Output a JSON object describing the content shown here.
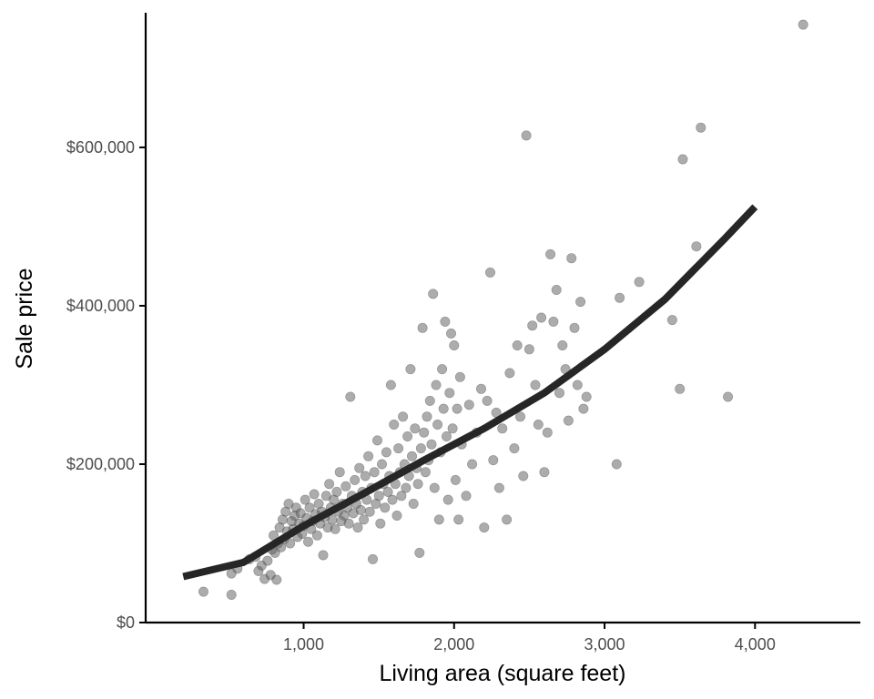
{
  "chart_data": {
    "type": "scatter",
    "title": "",
    "xlabel": "Living area (square feet)",
    "ylabel": "Sale price",
    "xlim": [
      -50,
      4700
    ],
    "ylim": [
      0,
      770000
    ],
    "xticks": [
      {
        "value": 1000,
        "label": "1,000"
      },
      {
        "value": 2000,
        "label": "2,000"
      },
      {
        "value": 3000,
        "label": "3,000"
      },
      {
        "value": 4000,
        "label": "4,000"
      }
    ],
    "yticks": [
      {
        "value": 0,
        "label": "$0"
      },
      {
        "value": 200000,
        "label": "$200,000"
      },
      {
        "value": 400000,
        "label": "$400,000"
      },
      {
        "value": 600000,
        "label": "$600,000"
      }
    ],
    "grid": false,
    "legend": "none",
    "point_color": "#595959",
    "line_color": "#262626",
    "series": [
      {
        "kind": "points",
        "points": [
          [
            334,
            39000
          ],
          [
            520,
            35000
          ],
          [
            520,
            62000
          ],
          [
            560,
            68000
          ],
          [
            640,
            80000
          ],
          [
            680,
            83000
          ],
          [
            700,
            65000
          ],
          [
            720,
            72000
          ],
          [
            740,
            55000
          ],
          [
            760,
            78000
          ],
          [
            780,
            60000
          ],
          [
            790,
            92000
          ],
          [
            800,
            110000
          ],
          [
            810,
            88000
          ],
          [
            820,
            54000
          ],
          [
            830,
            100000
          ],
          [
            840,
            120000
          ],
          [
            850,
            95000
          ],
          [
            860,
            130000
          ],
          [
            870,
            105000
          ],
          [
            880,
            140000
          ],
          [
            890,
            115000
          ],
          [
            900,
            150000
          ],
          [
            910,
            100000
          ],
          [
            920,
            128000
          ],
          [
            930,
            118000
          ],
          [
            940,
            135000
          ],
          [
            950,
            145000
          ],
          [
            960,
            108000
          ],
          [
            970,
            125000
          ],
          [
            980,
            138000
          ],
          [
            990,
            112000
          ],
          [
            1000,
            122000
          ],
          [
            1010,
            155000
          ],
          [
            1020,
            132000
          ],
          [
            1030,
            102000
          ],
          [
            1040,
            145000
          ],
          [
            1050,
            118000
          ],
          [
            1060,
            128000
          ],
          [
            1070,
            162000
          ],
          [
            1080,
            137000
          ],
          [
            1090,
            110000
          ],
          [
            1100,
            150000
          ],
          [
            1110,
            125000
          ],
          [
            1120,
            140000
          ],
          [
            1130,
            85000
          ],
          [
            1140,
            133000
          ],
          [
            1150,
            160000
          ],
          [
            1160,
            120000
          ],
          [
            1170,
            175000
          ],
          [
            1180,
            145000
          ],
          [
            1190,
            130000
          ],
          [
            1200,
            155000
          ],
          [
            1210,
            118000
          ],
          [
            1220,
            165000
          ],
          [
            1230,
            140000
          ],
          [
            1240,
            190000
          ],
          [
            1250,
            128000
          ],
          [
            1260,
            150000
          ],
          [
            1270,
            135000
          ],
          [
            1280,
            172000
          ],
          [
            1290,
            145000
          ],
          [
            1300,
            125000
          ],
          [
            1310,
            285000
          ],
          [
            1320,
            160000
          ],
          [
            1330,
            138000
          ],
          [
            1340,
            180000
          ],
          [
            1350,
            150000
          ],
          [
            1360,
            120000
          ],
          [
            1370,
            195000
          ],
          [
            1380,
            142000
          ],
          [
            1390,
            165000
          ],
          [
            1400,
            130000
          ],
          [
            1410,
            185000
          ],
          [
            1420,
            155000
          ],
          [
            1430,
            210000
          ],
          [
            1440,
            140000
          ],
          [
            1450,
            170000
          ],
          [
            1460,
            80000
          ],
          [
            1470,
            190000
          ],
          [
            1480,
            150000
          ],
          [
            1490,
            230000
          ],
          [
            1500,
            160000
          ],
          [
            1510,
            125000
          ],
          [
            1520,
            200000
          ],
          [
            1530,
            175000
          ],
          [
            1540,
            145000
          ],
          [
            1550,
            215000
          ],
          [
            1560,
            165000
          ],
          [
            1570,
            185000
          ],
          [
            1580,
            300000
          ],
          [
            1590,
            155000
          ],
          [
            1600,
            250000
          ],
          [
            1610,
            175000
          ],
          [
            1620,
            135000
          ],
          [
            1630,
            220000
          ],
          [
            1640,
            190000
          ],
          [
            1650,
            160000
          ],
          [
            1660,
            260000
          ],
          [
            1670,
            200000
          ],
          [
            1680,
            170000
          ],
          [
            1690,
            235000
          ],
          [
            1700,
            185000
          ],
          [
            1710,
            320000
          ],
          [
            1720,
            210000
          ],
          [
            1730,
            150000
          ],
          [
            1740,
            245000
          ],
          [
            1750,
            195000
          ],
          [
            1760,
            175000
          ],
          [
            1770,
            88000
          ],
          [
            1780,
            220000
          ],
          [
            1790,
            372000
          ],
          [
            1800,
            240000
          ],
          [
            1810,
            190000
          ],
          [
            1820,
            260000
          ],
          [
            1830,
            205000
          ],
          [
            1840,
            280000
          ],
          [
            1850,
            225000
          ],
          [
            1860,
            415000
          ],
          [
            1870,
            170000
          ],
          [
            1880,
            300000
          ],
          [
            1890,
            250000
          ],
          [
            1900,
            130000
          ],
          [
            1910,
            215000
          ],
          [
            1920,
            320000
          ],
          [
            1930,
            270000
          ],
          [
            1940,
            380000
          ],
          [
            1950,
            235000
          ],
          [
            1960,
            155000
          ],
          [
            1970,
            290000
          ],
          [
            1980,
            365000
          ],
          [
            1990,
            245000
          ],
          [
            2000,
            350000
          ],
          [
            2010,
            180000
          ],
          [
            2020,
            270000
          ],
          [
            2030,
            130000
          ],
          [
            2040,
            310000
          ],
          [
            2050,
            225000
          ],
          [
            2080,
            160000
          ],
          [
            2100,
            275000
          ],
          [
            2120,
            200000
          ],
          [
            2150,
            240000
          ],
          [
            2180,
            295000
          ],
          [
            2200,
            120000
          ],
          [
            2220,
            280000
          ],
          [
            2240,
            442000
          ],
          [
            2260,
            205000
          ],
          [
            2280,
            265000
          ],
          [
            2300,
            170000
          ],
          [
            2320,
            245000
          ],
          [
            2350,
            130000
          ],
          [
            2370,
            315000
          ],
          [
            2400,
            220000
          ],
          [
            2420,
            350000
          ],
          [
            2440,
            260000
          ],
          [
            2460,
            185000
          ],
          [
            2480,
            615000
          ],
          [
            2500,
            345000
          ],
          [
            2520,
            375000
          ],
          [
            2540,
            300000
          ],
          [
            2560,
            250000
          ],
          [
            2580,
            385000
          ],
          [
            2600,
            190000
          ],
          [
            2620,
            240000
          ],
          [
            2640,
            465000
          ],
          [
            2660,
            380000
          ],
          [
            2680,
            420000
          ],
          [
            2700,
            290000
          ],
          [
            2720,
            350000
          ],
          [
            2740,
            320000
          ],
          [
            2760,
            255000
          ],
          [
            2780,
            460000
          ],
          [
            2800,
            372000
          ],
          [
            2820,
            300000
          ],
          [
            2840,
            405000
          ],
          [
            2860,
            270000
          ],
          [
            2880,
            285000
          ],
          [
            3080,
            200000
          ],
          [
            3100,
            410000
          ],
          [
            3230,
            430000
          ],
          [
            3450,
            382000
          ],
          [
            3500,
            295000
          ],
          [
            3520,
            585000
          ],
          [
            3610,
            475000
          ],
          [
            3640,
            625000
          ],
          [
            3820,
            285000
          ],
          [
            4320,
            755000
          ]
        ]
      },
      {
        "kind": "fit",
        "points": [
          [
            200,
            58000
          ],
          [
            600,
            76000
          ],
          [
            1000,
            122000
          ],
          [
            1400,
            163000
          ],
          [
            1800,
            205000
          ],
          [
            2200,
            245000
          ],
          [
            2600,
            290000
          ],
          [
            3000,
            345000
          ],
          [
            3400,
            408000
          ],
          [
            3800,
            485000
          ],
          [
            4000,
            525000
          ]
        ]
      }
    ]
  }
}
